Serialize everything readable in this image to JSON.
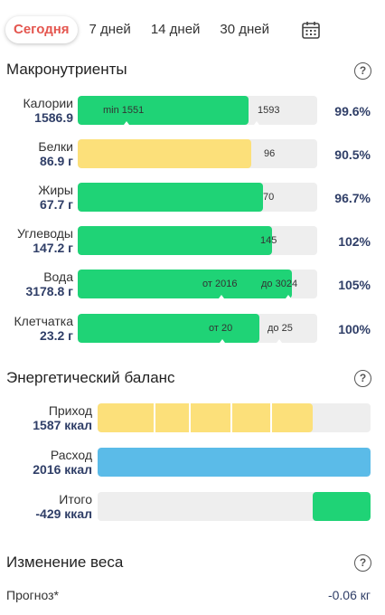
{
  "tabs": [
    {
      "label": "Сегодня",
      "active": true
    },
    {
      "label": "7 дней"
    },
    {
      "label": "14 дней"
    },
    {
      "label": "30 дней"
    }
  ],
  "calendar_icon": "calendar-icon",
  "macros": {
    "title": "Макронутриенты",
    "rows": [
      {
        "name": "Калории",
        "value": "1586.9",
        "fill_fraction": 0.996,
        "color": "green",
        "marks": [
          "min 1551",
          "1593"
        ],
        "percent": "99.6%"
      },
      {
        "name": "Белки",
        "value": "86.9 г",
        "fill_fraction": 0.905,
        "color": "yellow",
        "marks": [
          "96"
        ],
        "percent": "90.5%"
      },
      {
        "name": "Жиры",
        "value": "67.7 г",
        "fill_fraction": 0.967,
        "color": "green",
        "marks": [
          "70"
        ],
        "percent": "96.7%"
      },
      {
        "name": "Углеводы",
        "value": "147.2 г",
        "fill_fraction": 1.0,
        "color": "green",
        "marks": [
          "145"
        ],
        "percent": "102%"
      },
      {
        "name": "Вода",
        "value": "3178.8 г",
        "fill_fraction": 1.0,
        "color": "green",
        "marks": [
          "от 2016",
          "до 3024"
        ],
        "percent": "105%"
      },
      {
        "name": "Клетчатка",
        "value": "23.2 г",
        "fill_fraction": 1.0,
        "color": "green",
        "marks": [
          "от 20",
          "до 25"
        ],
        "percent": "100%"
      }
    ]
  },
  "energy": {
    "title": "Энергетический баланс",
    "rows": [
      {
        "name": "Приход",
        "value": "1587 ккал",
        "fill_fraction": 0.79,
        "color": "yellow",
        "segments": 5
      },
      {
        "name": "Расход",
        "value": "2016 ккал",
        "fill_fraction": 1.0,
        "color": "blue"
      },
      {
        "name": "Итого",
        "value": "-429 ккал",
        "fill_fraction": 0.21,
        "color": "green",
        "align": "right"
      }
    ]
  },
  "weight": {
    "title": "Изменение веса",
    "forecast_label": "Прогноз*",
    "forecast_value": "-0.06 кг"
  },
  "colors": {
    "accent": "#e4564f",
    "green": "#1fd376",
    "yellow": "#fce07a",
    "blue": "#5bbbe8",
    "value_text": "#2f3e67"
  }
}
